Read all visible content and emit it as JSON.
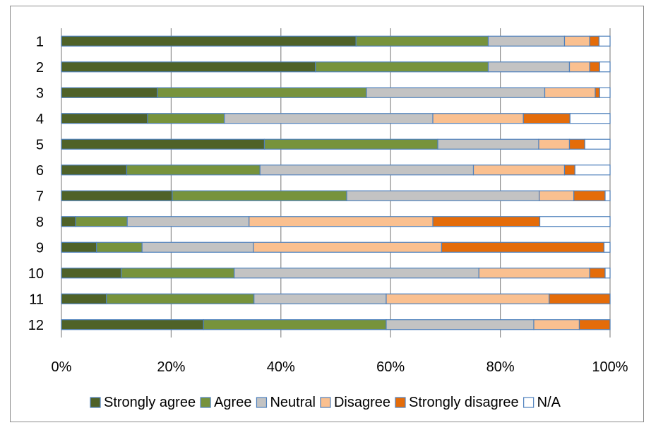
{
  "chart_data": {
    "type": "bar",
    "orientation": "horizontal",
    "stacked": "percent",
    "categories": [
      "1",
      "2",
      "3",
      "4",
      "5",
      "6",
      "7",
      "8",
      "9",
      "10",
      "11",
      "12"
    ],
    "series": [
      {
        "name": "Strongly agree",
        "color": "#4f6228",
        "values": [
          53.7,
          46.3,
          17.5,
          15.7,
          37.0,
          11.9,
          20.2,
          2.6,
          6.4,
          10.9,
          8.2,
          25.9
        ]
      },
      {
        "name": "Agree",
        "color": "#77933c",
        "values": [
          24.1,
          31.5,
          38.1,
          14.0,
          31.6,
          24.3,
          31.8,
          9.4,
          8.3,
          20.6,
          26.9,
          33.3
        ]
      },
      {
        "name": "Neutral",
        "color": "#c3c3c3",
        "values": [
          13.9,
          14.8,
          32.5,
          38.0,
          18.4,
          38.9,
          35.1,
          22.2,
          20.3,
          44.6,
          24.1,
          26.9
        ]
      },
      {
        "name": "Disagree",
        "color": "#fac090",
        "values": [
          4.6,
          3.7,
          9.2,
          16.5,
          5.6,
          16.6,
          6.3,
          33.5,
          34.3,
          20.2,
          29.7,
          8.3
        ]
      },
      {
        "name": "Strongly disagree",
        "color": "#e46c0a",
        "values": [
          1.7,
          1.8,
          0.8,
          8.5,
          2.8,
          1.9,
          5.7,
          19.5,
          29.6,
          2.8,
          11.1,
          5.6
        ]
      },
      {
        "name": "N/A",
        "color": "#ffffff",
        "values": [
          2.0,
          1.9,
          1.9,
          7.3,
          4.6,
          6.4,
          0.9,
          12.8,
          1.1,
          0.9,
          0.0,
          0.0
        ]
      }
    ],
    "x_ticks": [
      "0%",
      "20%",
      "40%",
      "60%",
      "80%",
      "100%"
    ],
    "xlim": [
      0,
      100
    ],
    "grid": "vertical",
    "legend_position": "bottom",
    "title": "",
    "xlabel": "",
    "ylabel": ""
  }
}
